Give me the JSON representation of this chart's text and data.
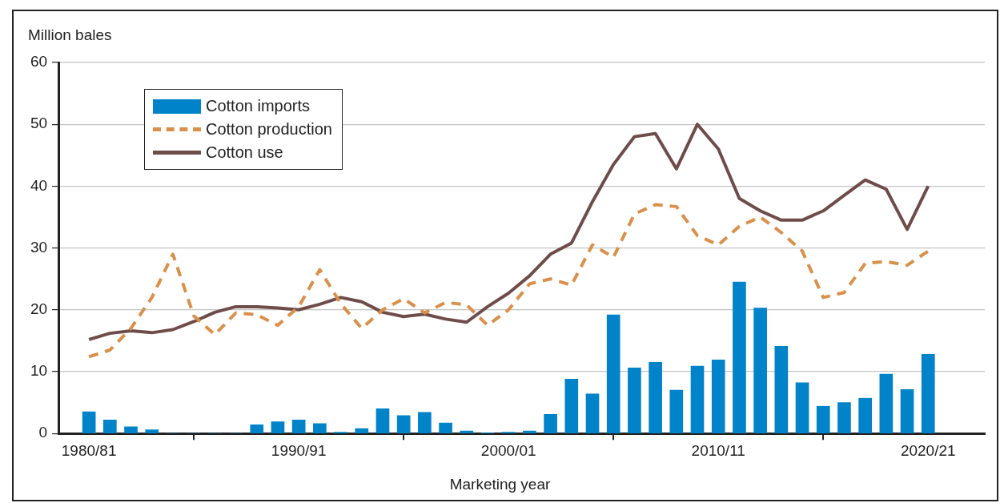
{
  "chart_data": {
    "type": "bar",
    "ylabel": "Million bales",
    "xlabel": "Marketing year",
    "categories": [
      "1980/81",
      null,
      null,
      null,
      null,
      null,
      null,
      null,
      null,
      null,
      "1990/91",
      null,
      null,
      null,
      null,
      null,
      null,
      null,
      null,
      null,
      "2000/01",
      null,
      null,
      null,
      null,
      null,
      null,
      null,
      null,
      null,
      "2010/11",
      null,
      null,
      null,
      null,
      null,
      null,
      null,
      null,
      null,
      "2020/21"
    ],
    "series": [
      {
        "name": "Cotton imports",
        "color": "#0083c9",
        "values": [
          3.5,
          2.2,
          1.1,
          0.6,
          0,
          0,
          0,
          0,
          1.4,
          1.9,
          2.2,
          1.6,
          0.2,
          0.8,
          4.0,
          2.9,
          3.4,
          1.7,
          0.4,
          0.1,
          0.2,
          0.4,
          3.1,
          8.8,
          6.4,
          19.2,
          10.6,
          11.5,
          7.0,
          10.9,
          11.9,
          24.5,
          20.3,
          14.1,
          8.2,
          4.4,
          5.0,
          5.7,
          9.6,
          7.1,
          12.8
        ]
      },
      {
        "name": "Cotton production",
        "type": "line",
        "line_style": "dashed",
        "color": "#d9904a",
        "values": [
          12.4,
          13.5,
          17,
          22,
          29,
          19,
          16,
          19.5,
          19.2,
          17.5,
          20.5,
          26.5,
          21,
          17,
          20,
          21.8,
          19.5,
          21.2,
          20.8,
          17.5,
          20,
          24.2,
          25,
          24,
          30.5,
          28.5,
          35.5,
          37,
          36.7,
          32,
          30.5,
          33.5,
          35,
          32.5,
          29.5,
          22,
          22.8,
          27.5,
          27.8,
          27.2,
          29.5
        ]
      },
      {
        "name": "Cotton use",
        "type": "line",
        "line_style": "solid",
        "color": "#6e4c4a",
        "values": [
          15.2,
          16.2,
          16.6,
          16.3,
          16.8,
          18.1,
          19.6,
          20.5,
          20.5,
          20.3,
          20,
          20.9,
          22,
          21.3,
          19.6,
          18.9,
          19.3,
          18.5,
          18,
          20.5,
          22.7,
          25.5,
          29,
          30.8,
          37.5,
          43.5,
          48,
          48.5,
          42.8,
          50,
          46,
          38,
          36,
          34.5,
          34.5,
          36,
          38.5,
          41,
          39.5,
          33,
          40
        ]
      }
    ],
    "ylim": [
      0,
      60
    ],
    "yticks": [
      0,
      10,
      20,
      30,
      40,
      50,
      60
    ],
    "grid": "y",
    "legend": "top left",
    "marker": "none"
  }
}
